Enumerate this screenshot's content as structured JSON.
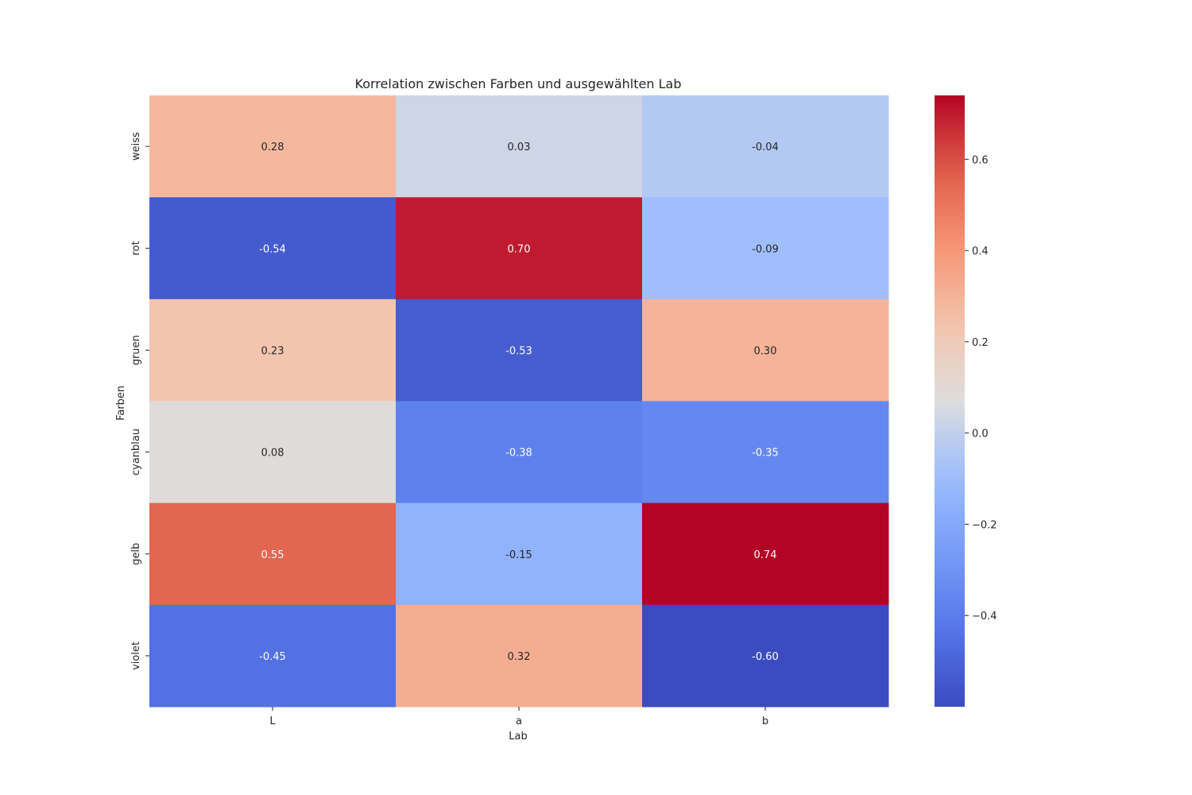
{
  "chart_data": {
    "type": "heatmap",
    "title": "Korrelation zwischen Farben und ausgewählten Lab",
    "xlabel": "Lab",
    "ylabel": "Farben",
    "x_categories": [
      "L",
      "a",
      "b"
    ],
    "y_categories": [
      "weiss",
      "rot",
      "gruen",
      "cyanblau",
      "gelb",
      "violet"
    ],
    "values": [
      [
        0.28,
        0.03,
        -0.04
      ],
      [
        -0.54,
        0.7,
        -0.09
      ],
      [
        0.23,
        -0.53,
        0.3
      ],
      [
        0.08,
        -0.38,
        -0.35
      ],
      [
        0.55,
        -0.15,
        0.74
      ],
      [
        -0.45,
        0.32,
        -0.6
      ]
    ],
    "cell_labels": [
      [
        "0.28",
        "0.03",
        "-0.04"
      ],
      [
        "-0.54",
        "0.70",
        "-0.09"
      ],
      [
        "0.23",
        "-0.53",
        "0.30"
      ],
      [
        "0.08",
        "-0.38",
        "-0.35"
      ],
      [
        "0.55",
        "-0.15",
        "0.74"
      ],
      [
        "-0.45",
        "0.32",
        "-0.60"
      ]
    ],
    "colormap": "coolwarm",
    "color_range": [
      -0.6,
      0.74
    ],
    "colorbar": {
      "ticks": [
        0.6,
        0.4,
        0.2,
        0.0,
        -0.2,
        -0.4
      ],
      "tick_labels": [
        "0.6",
        "0.4",
        "0.2",
        "0.0",
        "−0.2",
        "−0.4"
      ],
      "placement": "right"
    },
    "grid": false
  }
}
